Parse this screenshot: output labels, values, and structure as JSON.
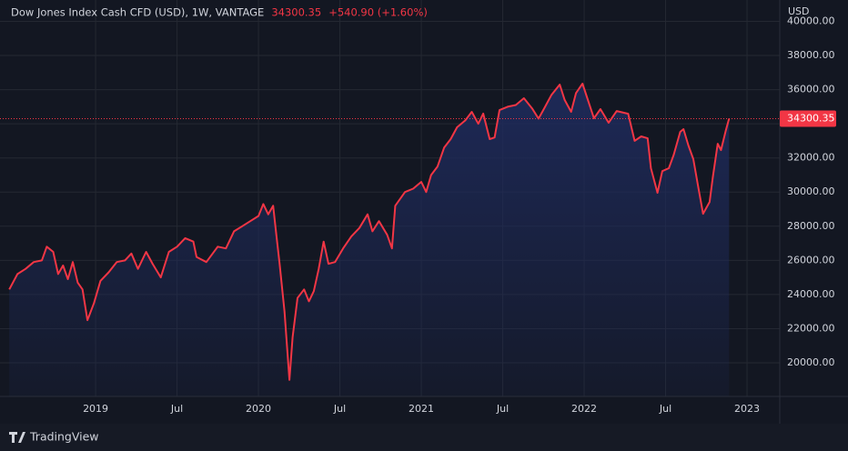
{
  "chart_data": {
    "type": "area",
    "title": "Dow Jones Index Cash CFD (USD), 1W, VANTAGE",
    "change": "+540.90 (+1.60%)",
    "y_label": "USD",
    "color": "#f23645",
    "fill": "#1e2a5a",
    "grid": true,
    "xlim": [
      2018.413,
      2023.201
    ],
    "ylim": [
      18030,
      41251
    ],
    "xticks": [
      {
        "value": 2019,
        "label": "2019"
      },
      {
        "value": 2019.5,
        "label": "Jul"
      },
      {
        "value": 2020,
        "label": "2020"
      },
      {
        "value": 2020.5,
        "label": "Jul"
      },
      {
        "value": 2021,
        "label": "2021"
      },
      {
        "value": 2021.5,
        "label": "Jul"
      },
      {
        "value": 2022,
        "label": "2022"
      },
      {
        "value": 2022.5,
        "label": "Jul"
      },
      {
        "value": 2023,
        "label": "2023"
      }
    ],
    "yticks": [
      {
        "value": 20000,
        "label": "20000.00"
      },
      {
        "value": 22000,
        "label": "22000.00"
      },
      {
        "value": 24000,
        "label": "24000.00"
      },
      {
        "value": 26000,
        "label": "26000.00"
      },
      {
        "value": 28000,
        "label": "28000.00"
      },
      {
        "value": 30000,
        "label": "30000.00"
      },
      {
        "value": 32000,
        "label": "32000.00"
      },
      {
        "value": 34000,
        "label": "34000.00"
      },
      {
        "value": 36000,
        "label": "36000.00"
      },
      {
        "value": 38000,
        "label": "38000.00"
      },
      {
        "value": 40000,
        "label": "40000.00"
      }
    ],
    "x": [
      2018.47,
      2018.52,
      2018.57,
      2018.62,
      2018.67,
      2018.7,
      2018.74,
      2018.77,
      2018.8,
      2018.83,
      2018.86,
      2018.89,
      2018.92,
      2018.95,
      2018.99,
      2019.03,
      2019.08,
      2019.13,
      2019.18,
      2019.22,
      2019.26,
      2019.31,
      2019.35,
      2019.4,
      2019.45,
      2019.5,
      2019.55,
      2019.6,
      2019.62,
      2019.68,
      2019.75,
      2019.8,
      2019.85,
      2019.9,
      2019.95,
      2020.0,
      2020.03,
      2020.06,
      2020.09,
      2020.11,
      2020.13,
      2020.16,
      2020.19,
      2020.21,
      2020.24,
      2020.28,
      2020.31,
      2020.34,
      2020.37,
      2020.4,
      2020.43,
      2020.47,
      2020.52,
      2020.57,
      2020.62,
      2020.67,
      2020.7,
      2020.74,
      2020.79,
      2020.82,
      2020.84,
      2020.9,
      2020.95,
      2021.0,
      2021.03,
      2021.06,
      2021.1,
      2021.14,
      2021.18,
      2021.22,
      2021.27,
      2021.31,
      2021.35,
      2021.38,
      2021.42,
      2021.45,
      2021.48,
      2021.53,
      2021.58,
      2021.63,
      2021.68,
      2021.72,
      2021.76,
      2021.8,
      2021.85,
      2021.88,
      2021.92,
      2021.95,
      2021.99,
      2022.06,
      2022.1,
      2022.15,
      2022.2,
      2022.27,
      2022.31,
      2022.35,
      2022.39,
      2022.41,
      2022.45,
      2022.48,
      2022.52,
      2022.55,
      2022.59,
      2022.61,
      2022.64,
      2022.67,
      2022.7,
      2022.73,
      2022.77,
      2022.79,
      2022.82,
      2022.84,
      2022.87,
      2022.89
    ],
    "values": [
      24300,
      25200,
      25500,
      25900,
      26000,
      26800,
      26500,
      25200,
      25700,
      24900,
      25900,
      24700,
      24300,
      22500,
      23500,
      24800,
      25300,
      25900,
      26000,
      26400,
      25500,
      26500,
      25800,
      25000,
      26500,
      26800,
      27300,
      27100,
      26200,
      25900,
      26800,
      26700,
      27700,
      28000,
      28300,
      28600,
      29300,
      28700,
      29200,
      27500,
      25800,
      23000,
      19000,
      21500,
      23800,
      24300,
      23600,
      24200,
      25500,
      27100,
      25800,
      25900,
      26700,
      27400,
      27900,
      28700,
      27700,
      28300,
      27500,
      26700,
      29200,
      30000,
      30200,
      30600,
      30000,
      31000,
      31500,
      32600,
      33100,
      33800,
      34200,
      34700,
      34000,
      34600,
      33100,
      33200,
      34800,
      35000,
      35100,
      35500,
      34900,
      34300,
      35000,
      35700,
      36300,
      35400,
      34700,
      35800,
      36350,
      34320,
      34860,
      34060,
      34750,
      34590,
      33000,
      33260,
      33150,
      31400,
      29960,
      31230,
      31400,
      32190,
      33530,
      33690,
      32730,
      31930,
      30330,
      28730,
      29420,
      30860,
      32830,
      32460,
      33630,
      34300.35
    ]
  },
  "brand": "TradingView"
}
